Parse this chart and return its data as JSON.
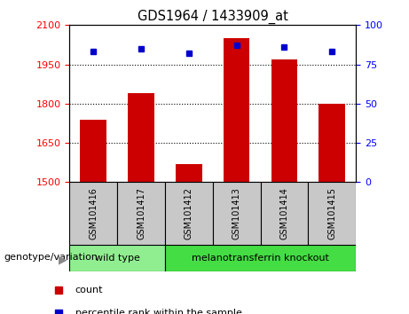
{
  "title": "GDS1964 / 1433909_at",
  "categories": [
    "GSM101416",
    "GSM101417",
    "GSM101412",
    "GSM101413",
    "GSM101414",
    "GSM101415"
  ],
  "bar_values": [
    1740,
    1840,
    1570,
    2050,
    1970,
    1800
  ],
  "percentile_values": [
    83,
    85,
    82,
    87,
    86,
    83
  ],
  "ylim_left": [
    1500,
    2100
  ],
  "ylim_right": [
    0,
    100
  ],
  "yticks_left": [
    1500,
    1650,
    1800,
    1950,
    2100
  ],
  "yticks_right": [
    0,
    25,
    50,
    75,
    100
  ],
  "bar_color": "#cc0000",
  "dot_color": "#0000cc",
  "grid_color": "#000000",
  "bg_color_plot": "#ffffff",
  "label_bg_color": "#c8c8c8",
  "group1_label": "wild type",
  "group2_label": "melanotransferrin knockout",
  "group1_indices": [
    0,
    1
  ],
  "group2_indices": [
    2,
    3,
    4,
    5
  ],
  "group1_color": "#90ee90",
  "group2_color": "#44dd44",
  "genotype_label": "genotype/variation",
  "legend_count": "count",
  "legend_percentile": "percentile rank within the sample",
  "bar_width": 0.55
}
